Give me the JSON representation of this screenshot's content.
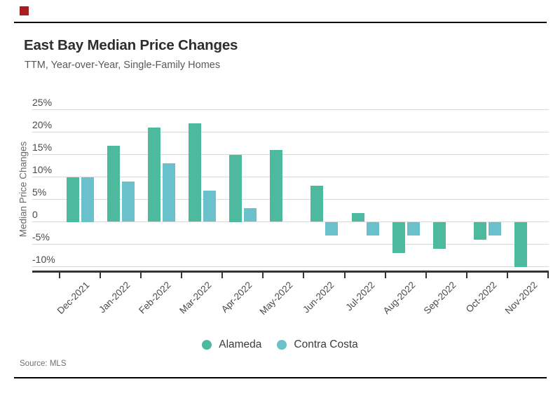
{
  "header": {
    "title": "East Bay Median Price Changes",
    "subtitle": "TTM, Year-over-Year, Single-Family Homes"
  },
  "footer": {
    "source_label": "Source:",
    "source_value": "MLS"
  },
  "decorations": {
    "red_marker_color": "#a81d1d"
  },
  "chart_data": {
    "type": "bar",
    "title": "East Bay Median Price Changes",
    "subtitle": "TTM, Year-over-Year, Single-Family Homes",
    "xlabel": "",
    "ylabel": "Median Price Changes",
    "ylim": [
      -11,
      25
    ],
    "grid": true,
    "legend_position": "bottom",
    "categories": [
      "Dec-2021",
      "Jan-2022",
      "Feb-2022",
      "Mar-2022",
      "Apr-2022",
      "May-2022",
      "Jun-2022",
      "Jul-2022",
      "Aug-2022",
      "Sep-2022",
      "Oct-2022",
      "Nov-2022"
    ],
    "series": [
      {
        "name": "Alameda",
        "color": "#4dbaa0",
        "values": [
          10,
          17,
          21,
          22,
          15,
          16,
          8,
          2,
          -7,
          -6,
          -4,
          -10
        ]
      },
      {
        "name": "Contra Costa",
        "color": "#6ac0cb",
        "values": [
          10,
          9,
          13,
          7,
          3,
          0,
          -3,
          -3,
          -3,
          0,
          -3,
          0
        ]
      }
    ],
    "yticks": [
      {
        "value": 25,
        "label": "25%"
      },
      {
        "value": 20,
        "label": "20%"
      },
      {
        "value": 15,
        "label": "15%"
      },
      {
        "value": 10,
        "label": "10%"
      },
      {
        "value": 5,
        "label": "5%"
      },
      {
        "value": 0,
        "label": "0"
      },
      {
        "value": -5,
        "label": "-5%"
      },
      {
        "value": -10,
        "label": "-10%"
      }
    ],
    "colors": {
      "grid": "#d9d9d9",
      "axis": "#333333",
      "tick_text": "#4a4a4a"
    }
  }
}
